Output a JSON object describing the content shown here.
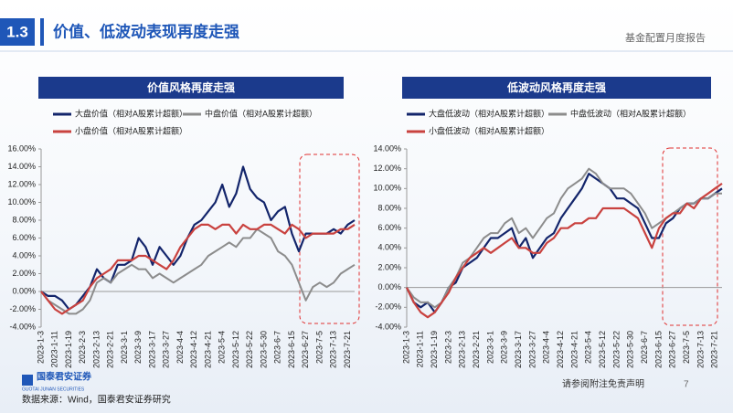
{
  "header": {
    "section": "1.3",
    "title": "价值、低波动表现再度走强",
    "report": "基金配置月度报告"
  },
  "footer": {
    "source": "数据来源：Wind，国泰君安证券研究",
    "disclaimer": "请参阅附注免责声明",
    "page": "7",
    "logo": "国泰君安证券",
    "logo_en": "GUOTAI JUNAN SECURITIES"
  },
  "chart_data": [
    {
      "type": "line",
      "title": "价值风格再度走强",
      "categories": [
        "2023-1-3",
        null,
        "2023-1-11",
        null,
        "2023-1-19",
        null,
        "2023-2-3",
        null,
        "2023-2-13",
        null,
        "2023-2-21",
        null,
        "2023-3-1",
        null,
        "2023-3-9",
        null,
        "2023-3-17",
        null,
        "2023-3-27",
        null,
        "2023-4-4",
        null,
        "2023-4-12",
        null,
        "2023-4-21",
        null,
        "2023-5-4",
        null,
        "2023-5-12",
        null,
        "2023-5-22",
        null,
        "2023-5-30",
        null,
        "2023-6-7",
        null,
        "2023-6-15",
        null,
        "2023-6-27",
        null,
        "2023-7-5",
        null,
        "2023-7-13",
        null,
        "2023-7-21",
        null
      ],
      "series": [
        {
          "name": "大盘价值（相对A股累计超额）",
          "color": "#13256b",
          "values": [
            0,
            -0.5,
            -0.5,
            -1,
            -2,
            -1.5,
            -0.5,
            0.5,
            2.5,
            1.5,
            1,
            3,
            3,
            3.5,
            6,
            5,
            3,
            5,
            4,
            3,
            4,
            6,
            7.5,
            8,
            9,
            10,
            12,
            9.5,
            11,
            14,
            11.5,
            10.5,
            10,
            8,
            9,
            9.5,
            6.5,
            4.5,
            6.5,
            6.5,
            6.5,
            6.5,
            7,
            6.5,
            7.5,
            8
          ]
        },
        {
          "name": "中盘价值（相对A股累计超额）",
          "color": "#8c8c8c",
          "values": [
            0,
            -1,
            -1.5,
            -2,
            -2.5,
            -2.5,
            -2,
            -1,
            1,
            1.5,
            1,
            2,
            2.5,
            3,
            2.5,
            2.5,
            1.5,
            2,
            1.5,
            1,
            1.5,
            2,
            2.5,
            3,
            4,
            4.5,
            5,
            5.5,
            5,
            6,
            6,
            7,
            6.5,
            6,
            4.5,
            4,
            3,
            1,
            -1,
            0.5,
            1,
            0.5,
            1,
            2,
            2.5,
            3
          ]
        },
        {
          "name": "小盘价值（相对A股累计超额）",
          "color": "#c9423f",
          "values": [
            0,
            -1,
            -2,
            -2.5,
            -2,
            -1.5,
            -1,
            0.5,
            1.5,
            2,
            2.5,
            3.5,
            3.5,
            3.5,
            4,
            4,
            3.5,
            3,
            2.5,
            3.5,
            5,
            6,
            7,
            7.5,
            7.5,
            7,
            7.5,
            7.5,
            6.5,
            7.5,
            7,
            7,
            7.5,
            7.5,
            7,
            6.5,
            7.5,
            7,
            6,
            6.5,
            6.5,
            6.5,
            6.5,
            7,
            7,
            7.5
          ]
        }
      ],
      "ylim": [
        -4,
        16
      ],
      "yticks": [
        {
          "value": -4,
          "label": "-4.00%"
        },
        {
          "value": -2,
          "label": "-2.00%"
        },
        {
          "value": 0,
          "label": "0.00%"
        },
        {
          "value": 2,
          "label": "2.00%"
        },
        {
          "value": 4,
          "label": "4.00%"
        },
        {
          "value": 6,
          "label": "6.00%"
        },
        {
          "value": 8,
          "label": "8.00%"
        },
        {
          "value": 10,
          "label": "10.00%"
        },
        {
          "value": 12,
          "label": "12.00%"
        },
        {
          "value": 14,
          "label": "14.00%"
        },
        {
          "value": 16,
          "label": "16.00%"
        }
      ]
    },
    {
      "type": "line",
      "title": "低波动风格再度走强",
      "categories": [
        "2023-1-3",
        null,
        "2023-1-11",
        null,
        "2023-1-19",
        null,
        "2023-2-3",
        null,
        "2023-2-13",
        null,
        "2023-2-21",
        null,
        "2023-3-1",
        null,
        "2023-3-9",
        null,
        "2023-3-17",
        null,
        "2023-3-27",
        null,
        "2023-4-4",
        null,
        "2023-4-12",
        null,
        "2023-4-21",
        null,
        "2023-5-4",
        null,
        "2023-5-12",
        null,
        "2023-5-22",
        null,
        "2023-5-30",
        null,
        "2023-6-7",
        null,
        "2023-6-15",
        null,
        "2023-6-27",
        null,
        "2023-7-5",
        null,
        "2023-7-13",
        null,
        "2023-7-21",
        null
      ],
      "series": [
        {
          "name": "大盘低波动（相对A股累计超额）",
          "color": "#13256b",
          "values": [
            0,
            -1.5,
            -2,
            -1.5,
            -2.5,
            -1.5,
            0,
            0.5,
            2,
            2.5,
            3,
            4,
            5,
            5,
            5.5,
            6,
            4,
            5,
            3,
            4,
            5,
            5.5,
            7,
            8,
            9,
            10,
            11.5,
            11,
            10.5,
            10,
            9,
            9,
            8.5,
            8,
            6.5,
            5,
            5,
            6.5,
            7,
            8,
            8.5,
            8.5,
            9,
            9,
            9.5,
            10
          ]
        },
        {
          "name": "中盘低波动（相对A股累计超额）",
          "color": "#8c8c8c",
          "values": [
            0,
            -1,
            -1.5,
            -1.5,
            -2,
            -1.5,
            0,
            1,
            2.5,
            3,
            4,
            5,
            5.5,
            5.5,
            6.5,
            7,
            5.5,
            6,
            5,
            6,
            7,
            7.5,
            9,
            10,
            10.5,
            11,
            12,
            11.5,
            10.5,
            10,
            10,
            10,
            9.5,
            8.5,
            7.5,
            6,
            6.5,
            7,
            7.5,
            8,
            8.5,
            8.5,
            9,
            9,
            9.5,
            9.5
          ]
        },
        {
          "name": "小盘低波动（相对A股累计超额）",
          "color": "#c9423f",
          "values": [
            0,
            -1.5,
            -2.5,
            -3,
            -2.5,
            -1.5,
            -0.5,
            1,
            2,
            3,
            3.5,
            4,
            3.5,
            4,
            4.5,
            5,
            4,
            4,
            3.5,
            3.5,
            4.5,
            5,
            6,
            6,
            6.5,
            6.5,
            7,
            7,
            8,
            8,
            8,
            8,
            7.5,
            7,
            5.5,
            4,
            6,
            7,
            7.5,
            7.5,
            8.5,
            8,
            9,
            9.5,
            10,
            10.5
          ]
        }
      ],
      "ylim": [
        -4,
        14
      ],
      "yticks": [
        {
          "value": -4,
          "label": "-4.00%"
        },
        {
          "value": -2,
          "label": "-2.00%"
        },
        {
          "value": 0,
          "label": "0.00%"
        },
        {
          "value": 2,
          "label": "2.00%"
        },
        {
          "value": 4,
          "label": "4.00%"
        },
        {
          "value": 6,
          "label": "6.00%"
        },
        {
          "value": 8,
          "label": "8.00%"
        },
        {
          "value": 10,
          "label": "10.00%"
        },
        {
          "value": 12,
          "label": "12.00%"
        },
        {
          "value": 14,
          "label": "14.00%"
        }
      ]
    }
  ]
}
